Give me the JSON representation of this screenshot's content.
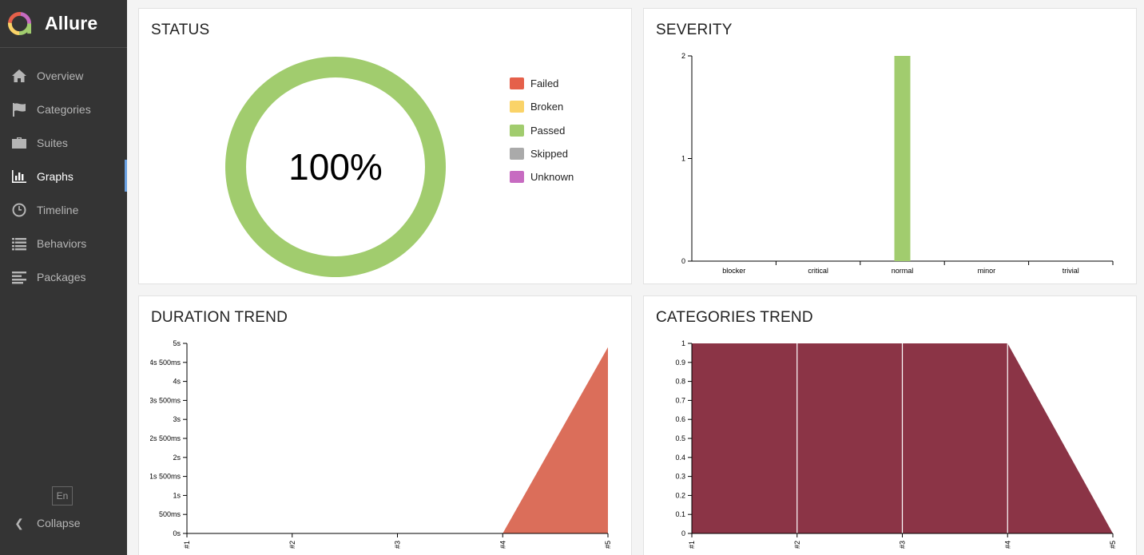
{
  "app": {
    "name": "Allure"
  },
  "sidebar": {
    "items": [
      {
        "label": "Overview",
        "icon": "home-icon"
      },
      {
        "label": "Categories",
        "icon": "flag-icon"
      },
      {
        "label": "Suites",
        "icon": "briefcase-icon"
      },
      {
        "label": "Graphs",
        "icon": "bar-chart-icon",
        "active": true
      },
      {
        "label": "Timeline",
        "icon": "clock-icon"
      },
      {
        "label": "Behaviors",
        "icon": "list-icon"
      },
      {
        "label": "Packages",
        "icon": "align-left-icon"
      }
    ],
    "language": "En",
    "collapse_label": "Collapse"
  },
  "widgets": {
    "status": {
      "title": "STATUS"
    },
    "severity": {
      "title": "SEVERITY"
    },
    "duration": {
      "title": "DURATION TREND"
    },
    "categories": {
      "title": "CATEGORIES TREND"
    }
  },
  "colors": {
    "failed": "#e5604a",
    "broken": "#fad368",
    "passed": "#a1cc6e",
    "skipped": "#aaaaaa",
    "unknown": "#c76bc1",
    "duration_area": "#db6e5a",
    "categories_area": "#8b3446"
  },
  "chart_data": [
    {
      "type": "pie",
      "name": "status",
      "center_label": "100%",
      "legend": [
        "Failed",
        "Broken",
        "Passed",
        "Skipped",
        "Unknown"
      ],
      "slices": [
        {
          "name": "Failed",
          "value": 0
        },
        {
          "name": "Broken",
          "value": 0
        },
        {
          "name": "Passed",
          "value": 2
        },
        {
          "name": "Skipped",
          "value": 0
        },
        {
          "name": "Unknown",
          "value": 0
        }
      ]
    },
    {
      "type": "bar",
      "name": "severity",
      "categories": [
        "blocker",
        "critical",
        "normal",
        "minor",
        "trivial"
      ],
      "values": [
        0,
        0,
        2,
        0,
        0
      ],
      "y_ticks": [
        "0",
        "1",
        "2"
      ],
      "ylim": [
        0,
        2
      ]
    },
    {
      "type": "area",
      "name": "duration",
      "x": [
        "#1",
        "#2",
        "#3",
        "#4",
        "#5"
      ],
      "values": [
        0,
        0,
        0,
        0,
        4.9
      ],
      "y_ticks": [
        "0s",
        "500ms",
        "1s",
        "1s 500ms",
        "2s",
        "2s 500ms",
        "3s",
        "3s 500ms",
        "4s",
        "4s 500ms",
        "5s"
      ],
      "ylim": [
        0,
        5
      ]
    },
    {
      "type": "area",
      "name": "categories",
      "x": [
        "#1",
        "#2",
        "#3",
        "#4",
        "#5"
      ],
      "values": [
        1,
        1,
        1,
        1,
        0
      ],
      "y_ticks": [
        "0",
        "0.1",
        "0.2",
        "0.3",
        "0.4",
        "0.5",
        "0.6",
        "0.7",
        "0.8",
        "0.9",
        "1"
      ],
      "ylim": [
        0,
        1
      ]
    }
  ]
}
